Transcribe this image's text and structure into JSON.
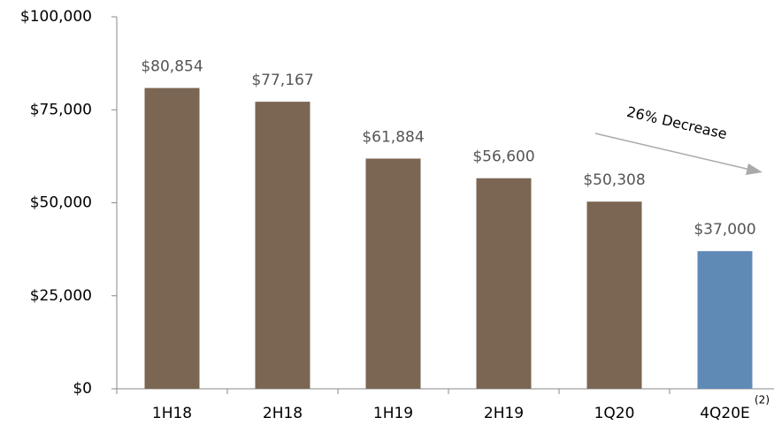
{
  "chart_data": {
    "type": "bar",
    "categories": [
      "1H18",
      "2H18",
      "1H19",
      "2H19",
      "1Q20",
      "4Q20E"
    ],
    "values": [
      80854,
      77167,
      61884,
      56600,
      50308,
      37000
    ],
    "value_labels": [
      "$80,854",
      "$77,167",
      "$61,884",
      "$56,600",
      "$50,308",
      "$37,000"
    ],
    "colors": [
      "#7a6652",
      "#7a6652",
      "#7a6652",
      "#7a6652",
      "#7a6652",
      "#5f8ab5"
    ],
    "ylim": [
      0,
      100000
    ],
    "yticks": [
      {
        "value": 0,
        "label": "$0"
      },
      {
        "value": 25000,
        "label": "$25,000"
      },
      {
        "value": 50000,
        "label": "$50,000"
      },
      {
        "value": 75000,
        "label": "$75,000"
      },
      {
        "value": 100000,
        "label": "$100,000"
      }
    ],
    "annotation": "26% Decrease",
    "footnote": "(2)"
  }
}
